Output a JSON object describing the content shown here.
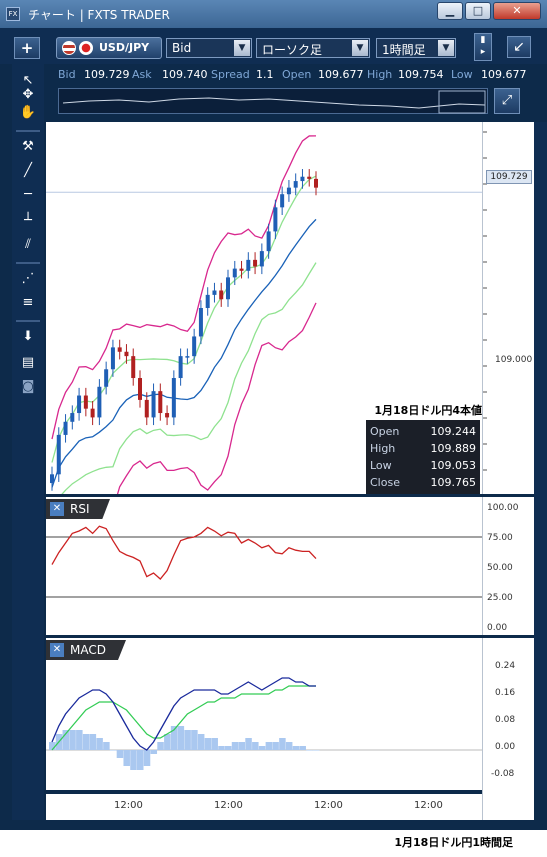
{
  "window": {
    "title": "チャート | FXTS TRADER",
    "app_icon": "FX",
    "minimize_glyph": "▁",
    "maximize_glyph": "□",
    "close_glyph": "✕"
  },
  "toolbar": {
    "add_glyph": "+",
    "pair_label": "USD/JPY",
    "price_type": "Bid",
    "chart_type": "ローソク足",
    "timeframe": "1時間足",
    "collapse_glyph": "↙"
  },
  "quote": {
    "bid_label": "Bid",
    "bid_value": "109.729",
    "ask_label": "Ask",
    "ask_value": "109.740",
    "spread_label": "Spread",
    "spread_value": "1.1",
    "open_label": "Open",
    "open_value": "109.677",
    "high_label": "High",
    "high_value": "109.754",
    "low_label": "Low",
    "low_value": "109.677"
  },
  "left_tools": [
    {
      "name": "pointer-tool-icon",
      "glyph": "↖"
    },
    {
      "name": "crosshair-tool-icon",
      "glyph": "✥"
    },
    {
      "name": "hand-tool-icon",
      "glyph": "✋"
    },
    {
      "name": "hammer-tool-icon",
      "glyph": "⚒"
    },
    {
      "name": "trendline-tool-icon",
      "glyph": "╱"
    },
    {
      "name": "horizontal-line-tool-icon",
      "glyph": "─"
    },
    {
      "name": "vertical-line-tool-icon",
      "glyph": "┴"
    },
    {
      "name": "parallel-lines-tool-icon",
      "glyph": "⫽"
    },
    {
      "name": "fan-tool-icon",
      "glyph": "⋰"
    },
    {
      "name": "fibonacci-tool-icon",
      "glyph": "≡"
    },
    {
      "name": "download-tool-icon",
      "glyph": "⬇"
    },
    {
      "name": "list-tool-icon",
      "glyph": "▤"
    },
    {
      "name": "camera-tool-icon",
      "glyph": "◙"
    }
  ],
  "main_chart": {
    "current_price_tag": "109.729",
    "y_label_mid": "109.000"
  },
  "ohlc_box": {
    "title": "1月18日ドル円4本値",
    "rows": [
      {
        "k": "Open",
        "v": "109.244"
      },
      {
        "k": "High",
        "v": "109.889"
      },
      {
        "k": "Low",
        "v": "109.053"
      },
      {
        "k": "Close",
        "v": "109.765"
      }
    ]
  },
  "rsi_panel": {
    "close_glyph": "✕",
    "label": "RSI",
    "ticks": [
      "100.00",
      "75.00",
      "50.00",
      "25.00",
      "0.00"
    ]
  },
  "macd_panel": {
    "close_glyph": "✕",
    "label": "MACD",
    "ticks": [
      "0.24",
      "0.16",
      "0.08",
      "0.00",
      "-0.08"
    ]
  },
  "x_axis": {
    "labels": [
      "12:00",
      "12:00",
      "12:00",
      "12:00"
    ]
  },
  "bottom_caption": "1月18日ドル円1時間足",
  "colors": {
    "bull_candle": "#1f5fb5",
    "bear_candle": "#b02020",
    "bollinger_outer": "#d8288e",
    "bollinger_inner": "#8fe28f",
    "middle_line": "#1a62b8",
    "rsi_line": "#cc2222",
    "macd_line": "#1a2a9c",
    "signal_line": "#33cc55",
    "histogram": "#aac8f0"
  },
  "chart_data": [
    {
      "type": "candlestick",
      "title": "",
      "series": [
        {
          "name": "",
          "values": [
            108.44,
            108.62,
            108.68,
            108.72,
            108.8,
            108.74,
            108.7,
            108.84,
            108.92,
            109.02,
            109.0,
            108.98,
            108.88,
            108.78,
            108.7,
            108.82,
            108.72,
            108.7,
            108.88,
            108.98,
            108.98,
            109.07,
            109.2,
            109.26,
            109.28,
            109.24,
            109.34,
            109.38,
            109.37,
            109.42,
            109.39,
            109.46,
            109.55,
            109.66,
            109.72,
            109.75,
            109.78,
            109.8,
            109.79,
            109.75
          ]
        }
      ],
      "ylim": [
        108.35,
        110.05
      ]
    },
    {
      "type": "line",
      "title": "RSI",
      "series": [
        {
          "name": "",
          "values": [
            52,
            62,
            70,
            78,
            80,
            83,
            78,
            84,
            82,
            72,
            63,
            60,
            58,
            55,
            42,
            45,
            40,
            47,
            60,
            72,
            74,
            75,
            78,
            83,
            80,
            76,
            79,
            78,
            70,
            73,
            70,
            66,
            68,
            62,
            61,
            66,
            64,
            63,
            63,
            57
          ]
        }
      ],
      "ylim": [
        0,
        100
      ]
    },
    {
      "type": "line",
      "title": "MACD",
      "series": [
        {
          "name": "",
          "values": [
            0.02,
            0.06,
            0.09,
            0.11,
            0.13,
            0.14,
            0.15,
            0.15,
            0.14,
            0.12,
            0.09,
            0.06,
            0.03,
            0.01,
            0.0,
            0.02,
            0.05,
            0.08,
            0.11,
            0.13,
            0.14,
            0.15,
            0.15,
            0.15,
            0.15,
            0.14,
            0.14,
            0.15,
            0.16,
            0.17,
            0.16,
            0.15,
            0.16,
            0.17,
            0.18,
            0.18,
            0.17,
            0.17,
            0.16,
            0.16
          ]
        },
        {
          "name": "",
          "values": [
            0.0,
            0.02,
            0.04,
            0.06,
            0.08,
            0.1,
            0.11,
            0.12,
            0.12,
            0.12,
            0.11,
            0.1,
            0.08,
            0.06,
            0.04,
            0.03,
            0.03,
            0.04,
            0.05,
            0.07,
            0.09,
            0.1,
            0.11,
            0.12,
            0.12,
            0.13,
            0.13,
            0.13,
            0.14,
            0.14,
            0.14,
            0.14,
            0.14,
            0.15,
            0.15,
            0.16,
            0.16,
            0.16,
            0.16,
            0.16
          ]
        },
        {
          "name": "",
          "values": [
            0.02,
            0.04,
            0.05,
            0.05,
            0.05,
            0.04,
            0.04,
            0.03,
            0.02,
            0.0,
            -0.02,
            -0.04,
            -0.05,
            -0.05,
            -0.04,
            -0.01,
            0.02,
            0.04,
            0.06,
            0.06,
            0.05,
            0.05,
            0.04,
            0.03,
            0.03,
            0.01,
            0.01,
            0.02,
            0.02,
            0.03,
            0.02,
            0.01,
            0.02,
            0.02,
            0.03,
            0.02,
            0.01,
            0.01,
            0.0,
            0.0
          ]
        }
      ],
      "ylim": [
        -0.1,
        0.28
      ]
    }
  ]
}
